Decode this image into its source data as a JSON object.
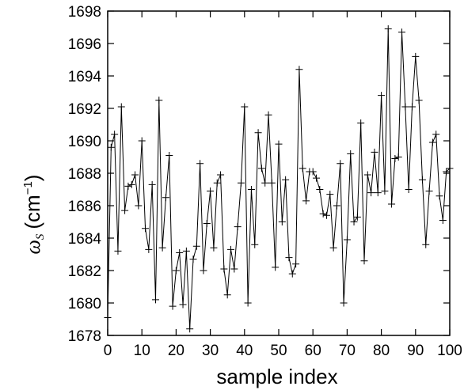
{
  "chart_data": {
    "type": "line",
    "title": "",
    "xlabel": "sample index",
    "ylabel_symbol": "ω",
    "ylabel_subscript": "S",
    "ylabel_unit": "(cm",
    "ylabel_unit_exp": "−1",
    "ylabel_unit_close": ")",
    "xlim": [
      0,
      100
    ],
    "ylim": [
      1678,
      1698
    ],
    "xticks": [
      "0",
      "10",
      "20",
      "30",
      "40",
      "50",
      "60",
      "70",
      "80",
      "90",
      "100"
    ],
    "yticks": [
      "1678",
      "1680",
      "1682",
      "1684",
      "1686",
      "1688",
      "1690",
      "1692",
      "1694",
      "1696",
      "1698"
    ],
    "grid": false,
    "legend": "none",
    "marker": "plus",
    "line_color": "#000000",
    "series": [
      {
        "x": [
          0,
          1,
          2,
          3,
          4,
          5,
          6,
          7,
          8,
          9,
          10,
          11,
          12,
          13,
          14,
          15,
          16,
          17,
          18,
          19,
          20,
          21,
          22,
          23,
          24,
          25,
          26,
          27,
          28,
          29,
          30,
          31,
          32,
          33,
          34,
          35,
          36,
          37,
          38,
          39,
          40,
          41,
          42,
          43,
          44,
          45,
          46,
          47,
          48,
          49,
          50,
          51,
          52,
          53,
          54,
          55,
          56,
          57,
          58,
          59,
          60,
          61,
          62,
          63,
          64,
          65,
          66,
          67,
          68,
          69,
          70,
          71,
          72,
          73,
          74,
          75,
          76,
          77,
          78,
          79,
          80,
          81,
          82,
          83,
          84,
          85,
          86,
          87,
          88,
          89,
          90,
          91,
          92,
          93,
          94,
          95,
          96,
          97,
          98,
          99,
          100
        ],
        "y": [
          1679.1,
          1689.6,
          1690.4,
          1683.2,
          1692.1,
          1685.7,
          1687.2,
          1687.3,
          1687.9,
          1686.0,
          1690.0,
          1684.6,
          1683.3,
          1687.3,
          1680.2,
          1692.5,
          1683.4,
          1686.5,
          1689.1,
          1679.8,
          1682.0,
          1683.1,
          1679.9,
          1683.2,
          1678.4,
          1682.7,
          1683.5,
          1688.6,
          1682.0,
          1684.9,
          1686.9,
          1683.4,
          1687.4,
          1687.9,
          1682.1,
          1680.5,
          1683.3,
          1682.1,
          1684.7,
          1687.4,
          1692.1,
          1680.0,
          1687.0,
          1683.6,
          1690.5,
          1688.3,
          1687.4,
          1691.6,
          1687.4,
          1682.2,
          1689.8,
          1685.0,
          1687.6,
          1682.8,
          1681.8,
          1682.4,
          1694.4,
          1688.3,
          1686.3,
          1688.1,
          1688.1,
          1687.7,
          1687.0,
          1685.5,
          1685.4,
          1686.7,
          1683.4,
          1686.0,
          1688.6,
          1680.0,
          1683.9,
          1689.2,
          1685.0,
          1685.3,
          1691.1,
          1682.6,
          1687.9,
          1686.8,
          1689.3,
          1686.8,
          1692.8,
          1686.9,
          1696.9,
          1686.1,
          1688.9,
          1689.0,
          1696.7,
          1692.1,
          1687.0,
          1692.1,
          1695.2,
          1692.5,
          1687.6,
          1683.6,
          1686.9,
          1689.9,
          1690.4,
          1686.6,
          1685.1,
          1688.1,
          1688.3
        ]
      }
    ]
  }
}
